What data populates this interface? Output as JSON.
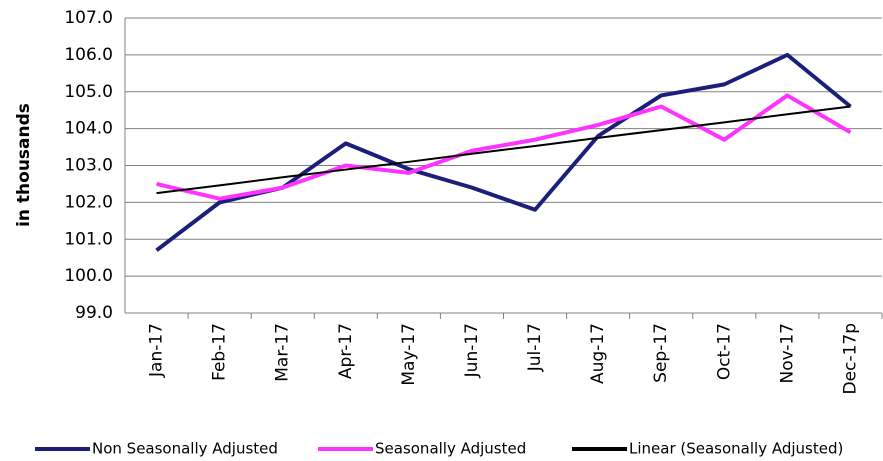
{
  "chart_data": {
    "type": "line",
    "y_label": "in thousands",
    "categories": [
      "Jan-17",
      "Feb-17",
      "Mar-17",
      "Apr-17",
      "May-17",
      "Jun-17",
      "Jul-17",
      "Aug-17",
      "Sep-17",
      "Oct-17",
      "Nov-17",
      "Dec-17p"
    ],
    "series": [
      {
        "name": "Non Seasonally Adjusted",
        "color": "#1b1f7a",
        "width": 4,
        "values": [
          100.7,
          102.0,
          102.4,
          103.6,
          102.9,
          102.4,
          101.8,
          103.8,
          104.9,
          105.2,
          106.0,
          104.6
        ]
      },
      {
        "name": "Seasonally Adjusted",
        "color": "#ff33ff",
        "width": 4,
        "values": [
          102.5,
          102.1,
          102.4,
          103.0,
          102.8,
          103.4,
          103.7,
          104.1,
          104.6,
          103.7,
          104.9,
          103.9
        ]
      },
      {
        "name": "Linear (Seasonally Adjusted)",
        "color": "#000000",
        "width": 2,
        "values": [
          102.25,
          102.46,
          102.68,
          102.89,
          103.1,
          103.32,
          103.53,
          103.75,
          103.96,
          104.17,
          104.39,
          104.6
        ]
      }
    ],
    "ylim": [
      99,
      107
    ],
    "yticks": [
      {
        "value": 99,
        "label": "99.0"
      },
      {
        "value": 100,
        "label": "100.0"
      },
      {
        "value": 101,
        "label": "101.0"
      },
      {
        "value": 102,
        "label": "102.0"
      },
      {
        "value": 103,
        "label": "103.0"
      },
      {
        "value": 104,
        "label": "104.0"
      },
      {
        "value": 105,
        "label": "105.0"
      },
      {
        "value": 106,
        "label": "106.0"
      },
      {
        "value": 107,
        "label": "107.0"
      }
    ],
    "grid": true,
    "legend": "bottom"
  }
}
